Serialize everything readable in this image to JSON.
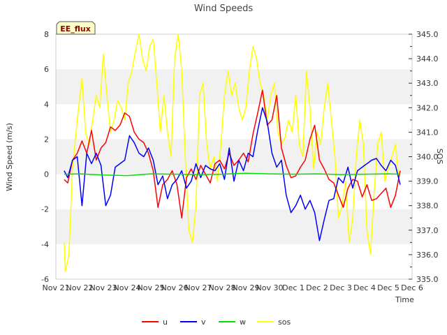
{
  "chart_data": {
    "type": "line",
    "title": "Wind Speeds",
    "xlabel": "Time",
    "ylabel": "Wind Speed (m/s)",
    "y2label": "SOS",
    "badge": "EE_flux",
    "xlim": [
      0,
      15
    ],
    "ylim": [
      -6,
      8
    ],
    "y2lim": [
      335.0,
      345.0
    ],
    "x_ticks": [
      {
        "x": 0,
        "label": "Nov 21"
      },
      {
        "x": 1,
        "label": "Nov 22"
      },
      {
        "x": 2,
        "label": "Nov 23"
      },
      {
        "x": 3,
        "label": "Nov 24"
      },
      {
        "x": 4,
        "label": "Nov 25"
      },
      {
        "x": 5,
        "label": "Nov 26"
      },
      {
        "x": 6,
        "label": "Nov 27"
      },
      {
        "x": 7,
        "label": "Nov 28"
      },
      {
        "x": 8,
        "label": "Nov 29"
      },
      {
        "x": 9,
        "label": "Nov 30"
      },
      {
        "x": 10,
        "label": "Dec 1"
      },
      {
        "x": 11,
        "label": "Dec 2"
      },
      {
        "x": 12,
        "label": "Dec 3"
      },
      {
        "x": 13,
        "label": "Dec 4"
      },
      {
        "x": 14,
        "label": "Dec 5"
      },
      {
        "x": 15,
        "label": "Dec 6"
      }
    ],
    "y_ticks": [
      -6,
      -4,
      -2,
      0,
      2,
      4,
      6,
      8
    ],
    "y2_ticks": [
      "335.0",
      "336.0",
      "337.0",
      "338.0",
      "339.0",
      "340.0",
      "341.0",
      "342.0",
      "343.0",
      "344.0",
      "345.0"
    ],
    "grid": "horizontal bands",
    "legend_position": "bottom-center",
    "series": [
      {
        "name": "u",
        "color": "#ff0000",
        "axis": "left",
        "x": [
          0.35,
          0.5,
          0.7,
          0.9,
          1.1,
          1.3,
          1.5,
          1.7,
          1.9,
          2.1,
          2.3,
          2.5,
          2.7,
          2.9,
          3.1,
          3.3,
          3.5,
          3.7,
          3.9,
          4.1,
          4.3,
          4.5,
          4.7,
          4.9,
          5.1,
          5.3,
          5.5,
          5.7,
          5.9,
          6.1,
          6.3,
          6.5,
          6.7,
          6.9,
          7.1,
          7.3,
          7.5,
          7.7,
          7.9,
          8.1,
          8.3,
          8.5,
          8.7,
          8.9,
          9.1,
          9.3,
          9.5,
          9.7,
          9.9,
          10.1,
          10.3,
          10.5,
          10.7,
          10.9,
          11.1,
          11.3,
          11.5,
          11.7,
          11.9,
          12.1,
          12.3,
          12.5,
          12.7,
          12.9,
          13.1,
          13.3,
          13.5,
          13.7,
          13.9,
          14.1,
          14.3,
          14.5
        ],
        "y": [
          -0.3,
          -0.5,
          0.8,
          1.2,
          1.9,
          1.2,
          2.5,
          0.8,
          1.5,
          1.8,
          2.7,
          2.5,
          2.8,
          3.5,
          3.3,
          2.4,
          2.0,
          1.8,
          1.2,
          0.2,
          -1.9,
          -0.6,
          -0.3,
          0.2,
          -0.6,
          -2.5,
          -0.2,
          0.3,
          -0.3,
          0.5,
          0.0,
          -0.5,
          0.6,
          0.8,
          0.3,
          1.2,
          0.5,
          0.8,
          1.2,
          0.7,
          2.3,
          3.5,
          4.8,
          2.8,
          3.1,
          4.5,
          1.5,
          0.5,
          -0.2,
          -0.1,
          0.4,
          0.8,
          2.0,
          2.8,
          0.8,
          0.3,
          -0.3,
          -0.5,
          -1.2,
          -1.9,
          -0.8,
          -0.3,
          -0.4,
          -1.3,
          -0.6,
          -1.5,
          -1.4,
          -1.1,
          -0.8,
          -1.9,
          -1.2,
          0.2
        ]
      },
      {
        "name": "v",
        "color": "#0000ff",
        "axis": "left",
        "x": [
          0.35,
          0.5,
          0.7,
          0.9,
          1.1,
          1.3,
          1.5,
          1.7,
          1.9,
          2.1,
          2.3,
          2.5,
          2.7,
          2.9,
          3.1,
          3.3,
          3.5,
          3.7,
          3.9,
          4.1,
          4.3,
          4.5,
          4.7,
          4.9,
          5.1,
          5.3,
          5.5,
          5.7,
          5.9,
          6.1,
          6.3,
          6.5,
          6.7,
          6.9,
          7.1,
          7.3,
          7.5,
          7.7,
          7.9,
          8.1,
          8.3,
          8.5,
          8.7,
          8.9,
          9.1,
          9.3,
          9.5,
          9.7,
          9.9,
          10.1,
          10.3,
          10.5,
          10.7,
          10.9,
          11.1,
          11.3,
          11.5,
          11.7,
          11.9,
          12.1,
          12.3,
          12.5,
          12.7,
          12.9,
          13.1,
          13.3,
          13.5,
          13.7,
          13.9,
          14.1,
          14.3,
          14.5
        ],
        "y": [
          0.2,
          -0.2,
          0.8,
          1.0,
          -1.8,
          1.2,
          0.6,
          1.2,
          0.5,
          -1.8,
          -1.2,
          0.4,
          0.6,
          0.8,
          2.2,
          1.8,
          1.2,
          1.0,
          1.5,
          0.8,
          -0.6,
          -0.1,
          -1.4,
          -0.6,
          -0.3,
          0.2,
          -0.8,
          -0.4,
          0.6,
          -0.2,
          0.5,
          0.3,
          0.2,
          0.6,
          -0.3,
          1.5,
          -0.4,
          0.8,
          0.2,
          1.2,
          1.0,
          2.5,
          3.8,
          3.0,
          1.2,
          0.4,
          0.8,
          -1.2,
          -2.2,
          -1.8,
          -1.2,
          -2.0,
          -1.5,
          -2.2,
          -3.8,
          -2.6,
          -1.5,
          -1.4,
          -0.2,
          -0.5,
          0.4,
          -0.8,
          0.2,
          0.4,
          0.6,
          0.8,
          0.9,
          0.5,
          0.2,
          0.8,
          0.5,
          -0.6
        ]
      },
      {
        "name": "w",
        "color": "#00e000",
        "axis": "left",
        "x": [
          0.35,
          1.0,
          2.0,
          3.0,
          4.0,
          5.0,
          6.0,
          7.0,
          8.0,
          9.0,
          10.0,
          11.0,
          12.0,
          13.0,
          14.0,
          14.5
        ],
        "y": [
          0.0,
          0.02,
          -0.05,
          -0.08,
          0.02,
          0.0,
          -0.02,
          0.0,
          0.05,
          0.02,
          0.0,
          0.02,
          -0.02,
          0.0,
          0.02,
          0.0
        ]
      },
      {
        "name": "sos",
        "color": "#ffff00",
        "axis": "right",
        "x": [
          0.35,
          0.4,
          0.55,
          0.7,
          0.9,
          1.1,
          1.25,
          1.4,
          1.55,
          1.7,
          1.85,
          2.0,
          2.15,
          2.3,
          2.45,
          2.6,
          2.75,
          2.9,
          3.05,
          3.2,
          3.35,
          3.5,
          3.65,
          3.8,
          3.95,
          4.1,
          4.25,
          4.4,
          4.55,
          4.7,
          4.85,
          5.0,
          5.15,
          5.3,
          5.45,
          5.6,
          5.75,
          5.9,
          6.05,
          6.2,
          6.35,
          6.5,
          6.65,
          6.8,
          6.95,
          7.1,
          7.25,
          7.4,
          7.55,
          7.7,
          7.85,
          8.0,
          8.15,
          8.3,
          8.45,
          8.6,
          8.75,
          8.9,
          9.05,
          9.2,
          9.35,
          9.5,
          9.65,
          9.8,
          9.95,
          10.1,
          10.25,
          10.4,
          10.55,
          10.7,
          10.85,
          11.0,
          11.15,
          11.3,
          11.45,
          11.6,
          11.75,
          11.9,
          12.05,
          12.2,
          12.35,
          12.5,
          12.65,
          12.8,
          12.95,
          13.1,
          13.25,
          13.4,
          13.55,
          13.7,
          13.85,
          14.0,
          14.15,
          14.3,
          14.45
        ],
        "y": [
          336.5,
          335.3,
          336.0,
          339.5,
          341.5,
          343.2,
          341.0,
          340.5,
          341.5,
          342.5,
          342.0,
          344.2,
          342.5,
          341.0,
          341.5,
          342.3,
          342.0,
          341.5,
          343.0,
          343.5,
          344.3,
          345.0,
          344.0,
          343.5,
          344.5,
          344.8,
          343.0,
          341.0,
          342.5,
          341.0,
          340.0,
          344.0,
          345.0,
          343.5,
          340.0,
          337.0,
          336.5,
          338.0,
          342.5,
          343.0,
          340.5,
          339.5,
          340.0,
          339.0,
          340.5,
          342.5,
          343.5,
          342.5,
          343.0,
          342.0,
          341.5,
          342.0,
          343.5,
          344.5,
          344.0,
          343.0,
          342.5,
          341.5,
          342.5,
          343.0,
          341.0,
          340.5,
          340.8,
          341.5,
          341.0,
          342.5,
          340.5,
          340.0,
          343.5,
          342.0,
          339.5,
          341.0,
          340.5,
          342.0,
          343.0,
          341.5,
          340.0,
          337.5,
          338.0,
          339.0,
          336.5,
          337.5,
          340.0,
          341.5,
          340.5,
          337.0,
          336.0,
          338.5,
          340.5,
          341.0,
          339.0,
          339.5,
          340.0,
          340.5,
          339.0
        ]
      }
    ]
  }
}
